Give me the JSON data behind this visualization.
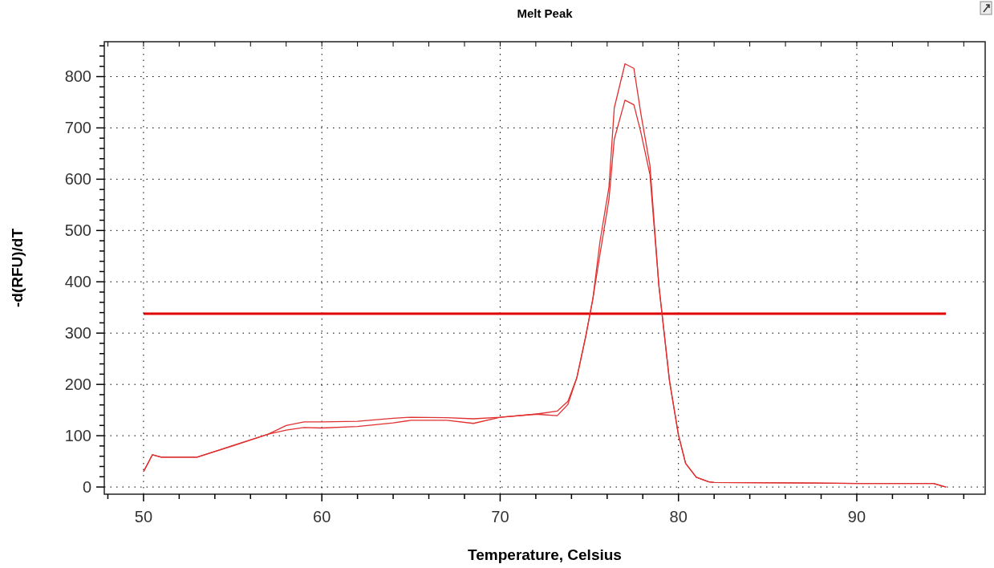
{
  "chart_data": {
    "type": "line",
    "title": "Melt Peak",
    "xlabel": "Temperature, Celsius",
    "ylabel": "-d(RFU)/dT",
    "xlim": [
      47.8,
      97.2
    ],
    "ylim": [
      -14,
      868
    ],
    "xticks": [
      {
        "value": 48,
        "label": null
      },
      50,
      {
        "value": 52,
        "label": null
      },
      {
        "value": 54,
        "label": null
      },
      {
        "value": 56,
        "label": null
      },
      {
        "value": 58,
        "label": null
      },
      60,
      {
        "value": 62,
        "label": null
      },
      {
        "value": 64,
        "label": null
      },
      {
        "value": 66,
        "label": null
      },
      {
        "value": 68,
        "label": null
      },
      70,
      {
        "value": 72,
        "label": null
      },
      {
        "value": 74,
        "label": null
      },
      {
        "value": 76,
        "label": null
      },
      {
        "value": 78,
        "label": null
      },
      80,
      {
        "value": 82,
        "label": null
      },
      {
        "value": 84,
        "label": null
      },
      {
        "value": 86,
        "label": null
      },
      {
        "value": 88,
        "label": null
      },
      90,
      {
        "value": 92,
        "label": null
      },
      {
        "value": 94,
        "label": null
      },
      {
        "value": 96,
        "label": null
      }
    ],
    "yticks": [
      0,
      {
        "value": 20,
        "label": null
      },
      {
        "value": 40,
        "label": null
      },
      {
        "value": 60,
        "label": null
      },
      {
        "value": 80,
        "label": null
      },
      100,
      {
        "value": 120,
        "label": null
      },
      {
        "value": 140,
        "label": null
      },
      {
        "value": 160,
        "label": null
      },
      {
        "value": 180,
        "label": null
      },
      200,
      {
        "value": 220,
        "label": null
      },
      {
        "value": 240,
        "label": null
      },
      {
        "value": 260,
        "label": null
      },
      {
        "value": 280,
        "label": null
      },
      300,
      {
        "value": 320,
        "label": null
      },
      {
        "value": 340,
        "label": null
      },
      {
        "value": 360,
        "label": null
      },
      {
        "value": 380,
        "label": null
      },
      400,
      {
        "value": 420,
        "label": null
      },
      {
        "value": 440,
        "label": null
      },
      {
        "value": 460,
        "label": null
      },
      {
        "value": 480,
        "label": null
      },
      500,
      {
        "value": 520,
        "label": null
      },
      {
        "value": 540,
        "label": null
      },
      {
        "value": 560,
        "label": null
      },
      {
        "value": 580,
        "label": null
      },
      600,
      {
        "value": 620,
        "label": null
      },
      {
        "value": 640,
        "label": null
      },
      {
        "value": 660,
        "label": null
      },
      {
        "value": 680,
        "label": null
      },
      700,
      {
        "value": 720,
        "label": null
      },
      {
        "value": 740,
        "label": null
      },
      {
        "value": 760,
        "label": null
      },
      {
        "value": 780,
        "label": null
      },
      800,
      {
        "value": 820,
        "label": null
      },
      {
        "value": 840,
        "label": null
      },
      {
        "value": 860,
        "label": null
      }
    ],
    "grid": true,
    "marker": "none",
    "line_style": "solid",
    "series": [
      {
        "color": "#e03030",
        "x": [
          50,
          50.5,
          51,
          52.5,
          53,
          55,
          57,
          58,
          59,
          60,
          62,
          64,
          65,
          67,
          68.5,
          70,
          72,
          73.2,
          73.8,
          74.3,
          74.8,
          75.2,
          75.6,
          76.1,
          76.4,
          77,
          77.5,
          77.9,
          78.4,
          78.9,
          79.5,
          80,
          80.4,
          81,
          81.7,
          82,
          86,
          90,
          94.3,
          95
        ],
        "values": [
          30,
          63,
          58,
          58,
          58,
          81,
          103,
          120,
          127,
          127,
          128,
          134,
          136,
          135,
          133,
          136,
          142,
          148,
          167,
          213,
          294,
          367,
          479,
          584,
          739,
          825,
          816,
          726,
          627,
          393,
          206,
          101,
          46,
          19,
          10,
          9,
          8,
          7,
          7,
          0
        ]
      },
      {
        "color": "#e03030",
        "x": [
          50,
          50.5,
          51,
          52.5,
          53,
          55,
          57,
          58,
          59,
          60,
          62,
          64,
          65,
          67,
          68.5,
          70,
          72,
          73.2,
          73.8,
          74.3,
          74.8,
          75.2,
          75.6,
          76.1,
          76.4,
          77,
          77.5,
          77.9,
          78.4,
          78.9,
          79.5,
          80,
          80.4,
          81,
          81.7,
          82,
          86,
          90,
          94.3,
          95
        ],
        "values": [
          30,
          63,
          58,
          58,
          58,
          80,
          103,
          111,
          116,
          115,
          118,
          125,
          130,
          130,
          124,
          136,
          142,
          139,
          161,
          213,
          294,
          367,
          454,
          560,
          678,
          754,
          745,
          690,
          609,
          393,
          206,
          101,
          46,
          19,
          10,
          9,
          8,
          7,
          7,
          0
        ]
      }
    ],
    "ref_lines": [
      {
        "axis": "y",
        "value": 338,
        "color": "#e00000",
        "line_style": "solid"
      }
    ]
  }
}
